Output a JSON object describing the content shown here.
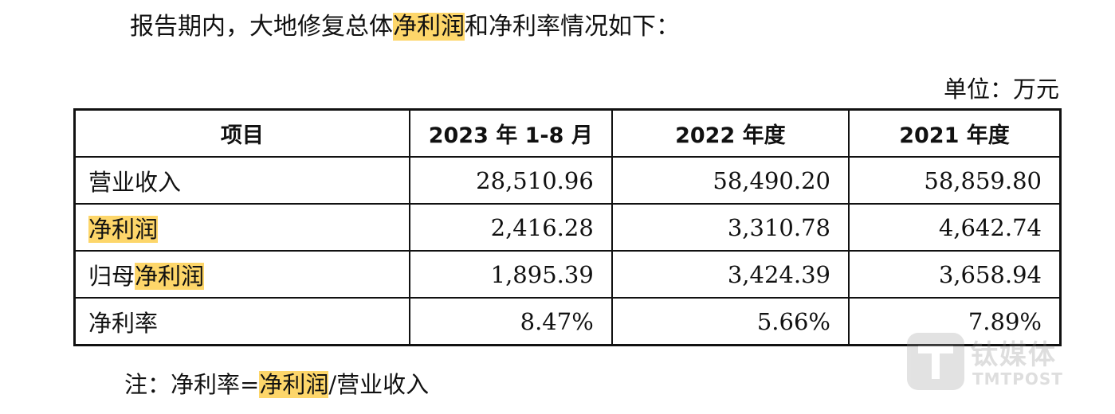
{
  "intro": {
    "before": "报告期内，大地修复总体",
    "highlight": "净利润",
    "after": "和净利率情况如下："
  },
  "unit_label": "单位：万元",
  "table": {
    "headers": [
      "项目",
      "2023 年 1-8 月",
      "2022 年度",
      "2021 年度"
    ],
    "rows": [
      {
        "prefix": "营业收入",
        "highlight": "",
        "values": [
          "28,510.96",
          "58,490.20",
          "58,859.80"
        ]
      },
      {
        "prefix": "",
        "highlight": "净利润",
        "values": [
          "2,416.28",
          "3,310.78",
          "4,642.74"
        ]
      },
      {
        "prefix": "归母",
        "highlight": "净利润",
        "values": [
          "1,895.39",
          "3,424.39",
          "3,658.94"
        ]
      },
      {
        "prefix": "净利率",
        "highlight": "",
        "values": [
          "8.47%",
          "5.66%",
          "7.89%"
        ]
      }
    ]
  },
  "note": {
    "before": "注：净利率=",
    "highlight": "净利润",
    "after": "/营业收入"
  },
  "watermark": {
    "cn": "钛媒体",
    "en": "TMTPOST"
  },
  "colors": {
    "highlight": "#fdd66a",
    "text": "#111111",
    "border": "#111111"
  }
}
